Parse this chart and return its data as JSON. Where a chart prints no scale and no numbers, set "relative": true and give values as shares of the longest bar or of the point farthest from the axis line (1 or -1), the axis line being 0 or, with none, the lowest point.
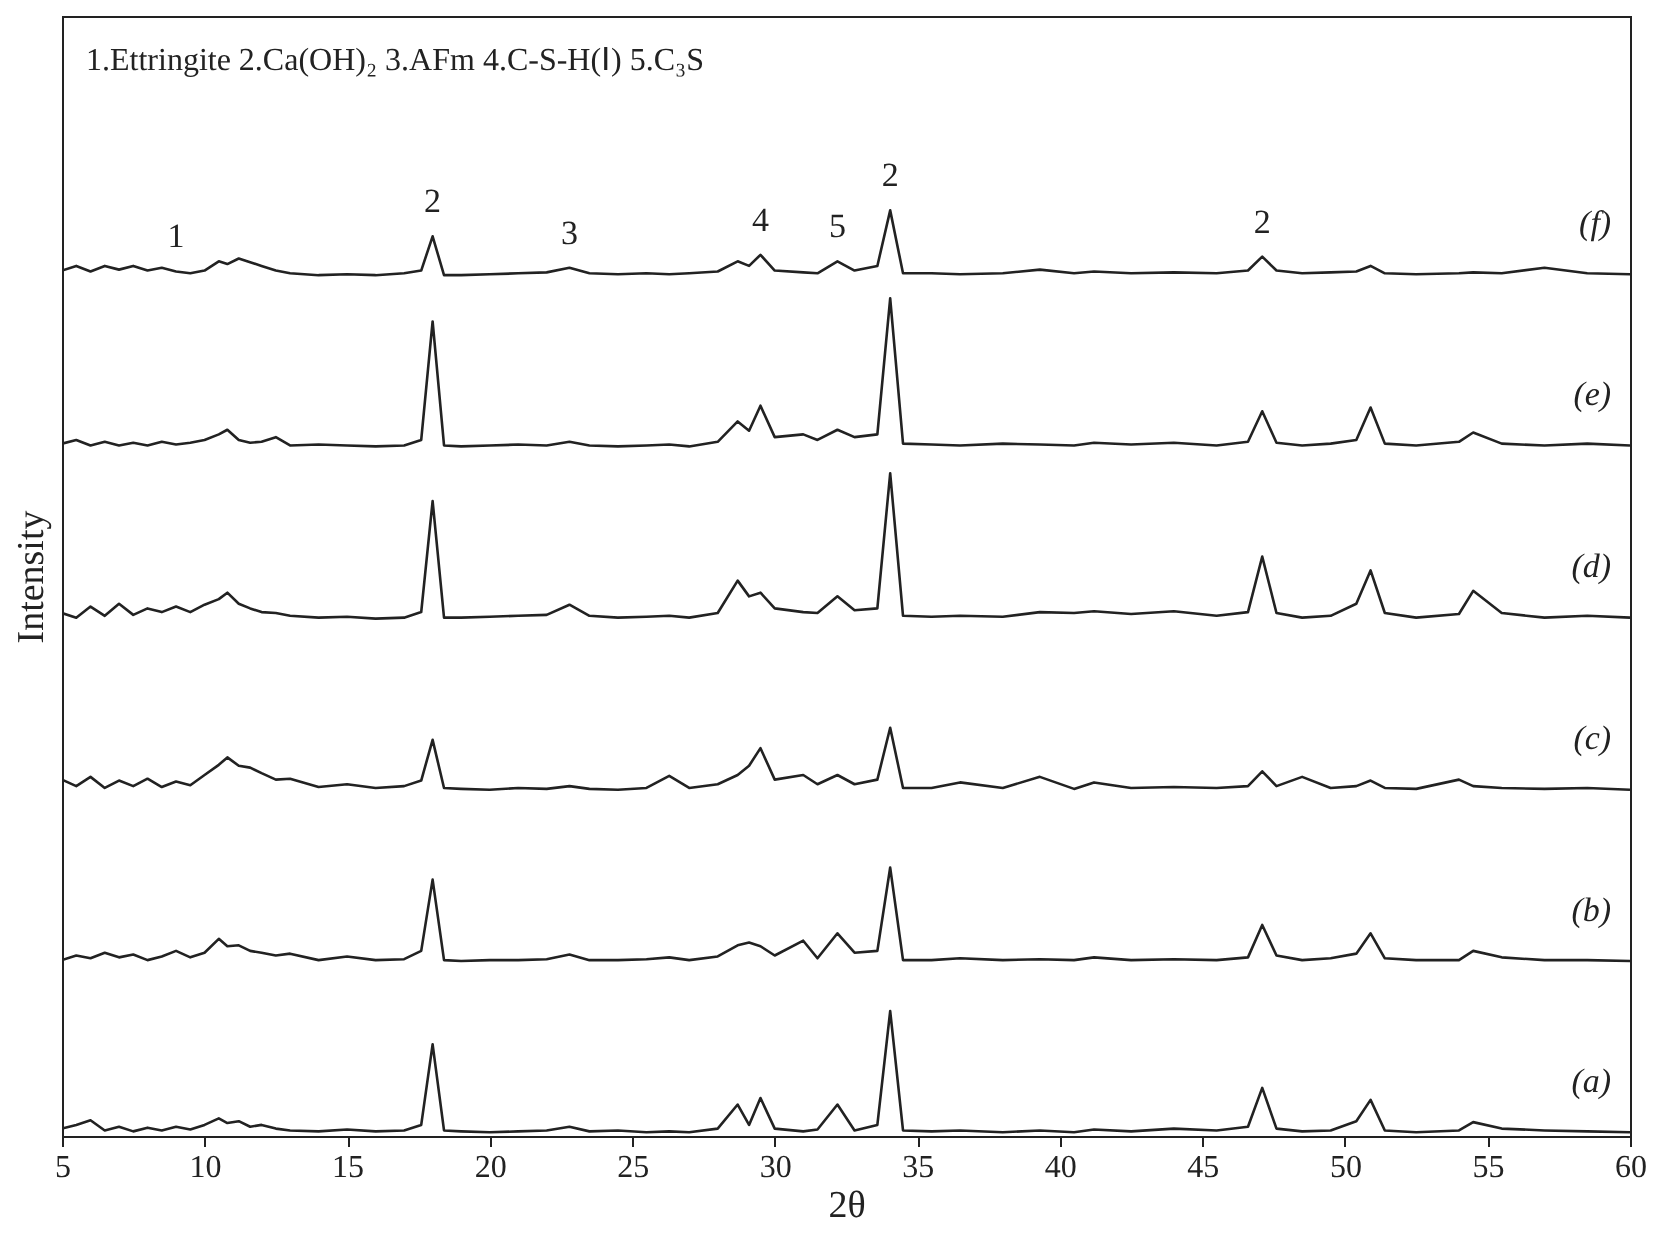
{
  "chart_data": {
    "type": "line",
    "relative": true,
    "xlabel": "2θ",
    "ylabel": "Intensity",
    "xlim": [
      5,
      60
    ],
    "xticks": [
      5,
      10,
      15,
      20,
      25,
      30,
      35,
      40,
      45,
      50,
      55,
      60
    ],
    "grid": false,
    "marker": "none",
    "line_style": "solid",
    "annotations": [
      "1.Ettringite 2.Ca(OH)₂ 3.AFm 4.C-S-H(Ⅰ) 5.C₃S",
      {
        "text": "1",
        "x": 9,
        "y": 0.934
      },
      {
        "text": "2",
        "x": 18,
        "y": 0.972
      },
      {
        "text": "3",
        "x": 22.8,
        "y": 0.938
      },
      {
        "text": "4",
        "x": 29.5,
        "y": 0.952
      },
      {
        "text": "5",
        "x": 32.2,
        "y": 0.945
      },
      {
        "text": "2",
        "x": 34.05,
        "y": 1.0
      },
      {
        "text": "2",
        "x": 47.1,
        "y": 0.95
      }
    ],
    "x": [
      5,
      5.5,
      6,
      6.5,
      7,
      7.5,
      8,
      8.5,
      9,
      9.5,
      10,
      10.5,
      10.8,
      11.2,
      11.6,
      12,
      12.5,
      13,
      14,
      15,
      16,
      17,
      17.6,
      18,
      18.4,
      19,
      20,
      21,
      22,
      22.8,
      23.5,
      24.5,
      25.5,
      26.3,
      27,
      28,
      28.7,
      29.1,
      29.5,
      30,
      31,
      31.5,
      32.2,
      32.8,
      33.6,
      34.05,
      34.5,
      35.5,
      36.5,
      38,
      39.3,
      40.5,
      41.2,
      42.5,
      44,
      45.5,
      46.6,
      47.1,
      47.6,
      48.5,
      49.5,
      50.4,
      50.9,
      51.4,
      52.5,
      54,
      54.5,
      55.5,
      57,
      58.5,
      60
    ],
    "series": [
      {
        "name": "(a)",
        "color": "#222222",
        "values": [
          0.008,
          0.012,
          0.017,
          0.006,
          0.01,
          0.005,
          0.009,
          0.006,
          0.01,
          0.007,
          0.012,
          0.019,
          0.014,
          0.016,
          0.01,
          0.012,
          0.008,
          0.006,
          0.005,
          0.007,
          0.005,
          0.006,
          0.012,
          0.099,
          0.006,
          0.005,
          0.004,
          0.005,
          0.006,
          0.01,
          0.005,
          0.006,
          0.004,
          0.005,
          0.004,
          0.008,
          0.034,
          0.012,
          0.041,
          0.008,
          0.005,
          0.007,
          0.034,
          0.006,
          0.012,
          0.135,
          0.006,
          0.005,
          0.006,
          0.004,
          0.006,
          0.004,
          0.007,
          0.005,
          0.008,
          0.006,
          0.01,
          0.052,
          0.008,
          0.005,
          0.006,
          0.016,
          0.039,
          0.006,
          0.004,
          0.006,
          0.015,
          0.008,
          0.006,
          0.005,
          0.004
        ]
      },
      {
        "name": "(b)",
        "color": "#222222",
        "values": [
          0.19,
          0.195,
          0.192,
          0.198,
          0.193,
          0.196,
          0.19,
          0.194,
          0.2,
          0.193,
          0.198,
          0.213,
          0.205,
          0.206,
          0.2,
          0.198,
          0.195,
          0.197,
          0.19,
          0.194,
          0.19,
          0.191,
          0.2,
          0.277,
          0.19,
          0.189,
          0.19,
          0.19,
          0.191,
          0.196,
          0.19,
          0.19,
          0.191,
          0.193,
          0.19,
          0.194,
          0.206,
          0.209,
          0.205,
          0.195,
          0.211,
          0.192,
          0.219,
          0.198,
          0.2,
          0.29,
          0.19,
          0.19,
          0.192,
          0.19,
          0.191,
          0.19,
          0.193,
          0.19,
          0.191,
          0.19,
          0.193,
          0.228,
          0.195,
          0.19,
          0.192,
          0.197,
          0.219,
          0.192,
          0.19,
          0.19,
          0.2,
          0.193,
          0.19,
          0.19,
          0.189
        ]
      },
      {
        "name": "(c)",
        "color": "#222222",
        "values": [
          0.385,
          0.378,
          0.388,
          0.376,
          0.384,
          0.378,
          0.386,
          0.377,
          0.383,
          0.379,
          0.39,
          0.401,
          0.409,
          0.4,
          0.398,
          0.392,
          0.385,
          0.386,
          0.377,
          0.38,
          0.376,
          0.378,
          0.384,
          0.428,
          0.376,
          0.375,
          0.374,
          0.376,
          0.375,
          0.378,
          0.375,
          0.374,
          0.376,
          0.389,
          0.376,
          0.38,
          0.39,
          0.4,
          0.419,
          0.385,
          0.39,
          0.38,
          0.39,
          0.38,
          0.385,
          0.441,
          0.376,
          0.376,
          0.382,
          0.376,
          0.388,
          0.375,
          0.382,
          0.376,
          0.377,
          0.376,
          0.378,
          0.394,
          0.378,
          0.388,
          0.376,
          0.378,
          0.384,
          0.376,
          0.375,
          0.385,
          0.378,
          0.376,
          0.375,
          0.376,
          0.374
        ]
      },
      {
        "name": "(d)",
        "color": "#222222",
        "values": [
          0.565,
          0.56,
          0.572,
          0.562,
          0.575,
          0.563,
          0.57,
          0.566,
          0.572,
          0.566,
          0.574,
          0.58,
          0.587,
          0.575,
          0.57,
          0.566,
          0.565,
          0.562,
          0.56,
          0.561,
          0.559,
          0.56,
          0.566,
          0.686,
          0.56,
          0.56,
          0.561,
          0.562,
          0.563,
          0.574,
          0.562,
          0.56,
          0.561,
          0.562,
          0.56,
          0.565,
          0.6,
          0.583,
          0.587,
          0.57,
          0.566,
          0.565,
          0.583,
          0.568,
          0.57,
          0.716,
          0.562,
          0.561,
          0.562,
          0.561,
          0.566,
          0.565,
          0.567,
          0.564,
          0.567,
          0.562,
          0.566,
          0.626,
          0.565,
          0.56,
          0.562,
          0.575,
          0.611,
          0.565,
          0.56,
          0.564,
          0.589,
          0.565,
          0.56,
          0.562,
          0.56
        ]
      },
      {
        "name": "(e)",
        "color": "#222222",
        "values": [
          0.748,
          0.752,
          0.746,
          0.75,
          0.746,
          0.749,
          0.746,
          0.75,
          0.747,
          0.749,
          0.752,
          0.758,
          0.763,
          0.752,
          0.749,
          0.75,
          0.755,
          0.746,
          0.747,
          0.746,
          0.745,
          0.746,
          0.752,
          0.88,
          0.746,
          0.745,
          0.746,
          0.747,
          0.746,
          0.75,
          0.746,
          0.745,
          0.746,
          0.747,
          0.745,
          0.75,
          0.772,
          0.762,
          0.789,
          0.755,
          0.758,
          0.752,
          0.763,
          0.755,
          0.758,
          0.905,
          0.748,
          0.747,
          0.746,
          0.748,
          0.747,
          0.746,
          0.749,
          0.747,
          0.749,
          0.746,
          0.75,
          0.783,
          0.749,
          0.746,
          0.748,
          0.752,
          0.787,
          0.748,
          0.746,
          0.75,
          0.76,
          0.748,
          0.746,
          0.748,
          0.746
        ]
      },
      {
        "name": "(f)",
        "color": "#222222",
        "values": [
          0.935,
          0.94,
          0.934,
          0.94,
          0.936,
          0.94,
          0.935,
          0.938,
          0.934,
          0.932,
          0.935,
          0.945,
          0.942,
          0.948,
          0.944,
          0.94,
          0.935,
          0.932,
          0.93,
          0.931,
          0.93,
          0.932,
          0.935,
          0.972,
          0.93,
          0.93,
          0.931,
          0.932,
          0.933,
          0.938,
          0.932,
          0.931,
          0.932,
          0.931,
          0.932,
          0.934,
          0.945,
          0.94,
          0.952,
          0.935,
          0.933,
          0.932,
          0.945,
          0.935,
          0.94,
          1.0,
          0.932,
          0.932,
          0.931,
          0.932,
          0.936,
          0.932,
          0.934,
          0.932,
          0.933,
          0.932,
          0.935,
          0.95,
          0.935,
          0.932,
          0.933,
          0.934,
          0.94,
          0.932,
          0.931,
          0.932,
          0.933,
          0.932,
          0.938,
          0.932,
          0.931
        ]
      }
    ]
  }
}
